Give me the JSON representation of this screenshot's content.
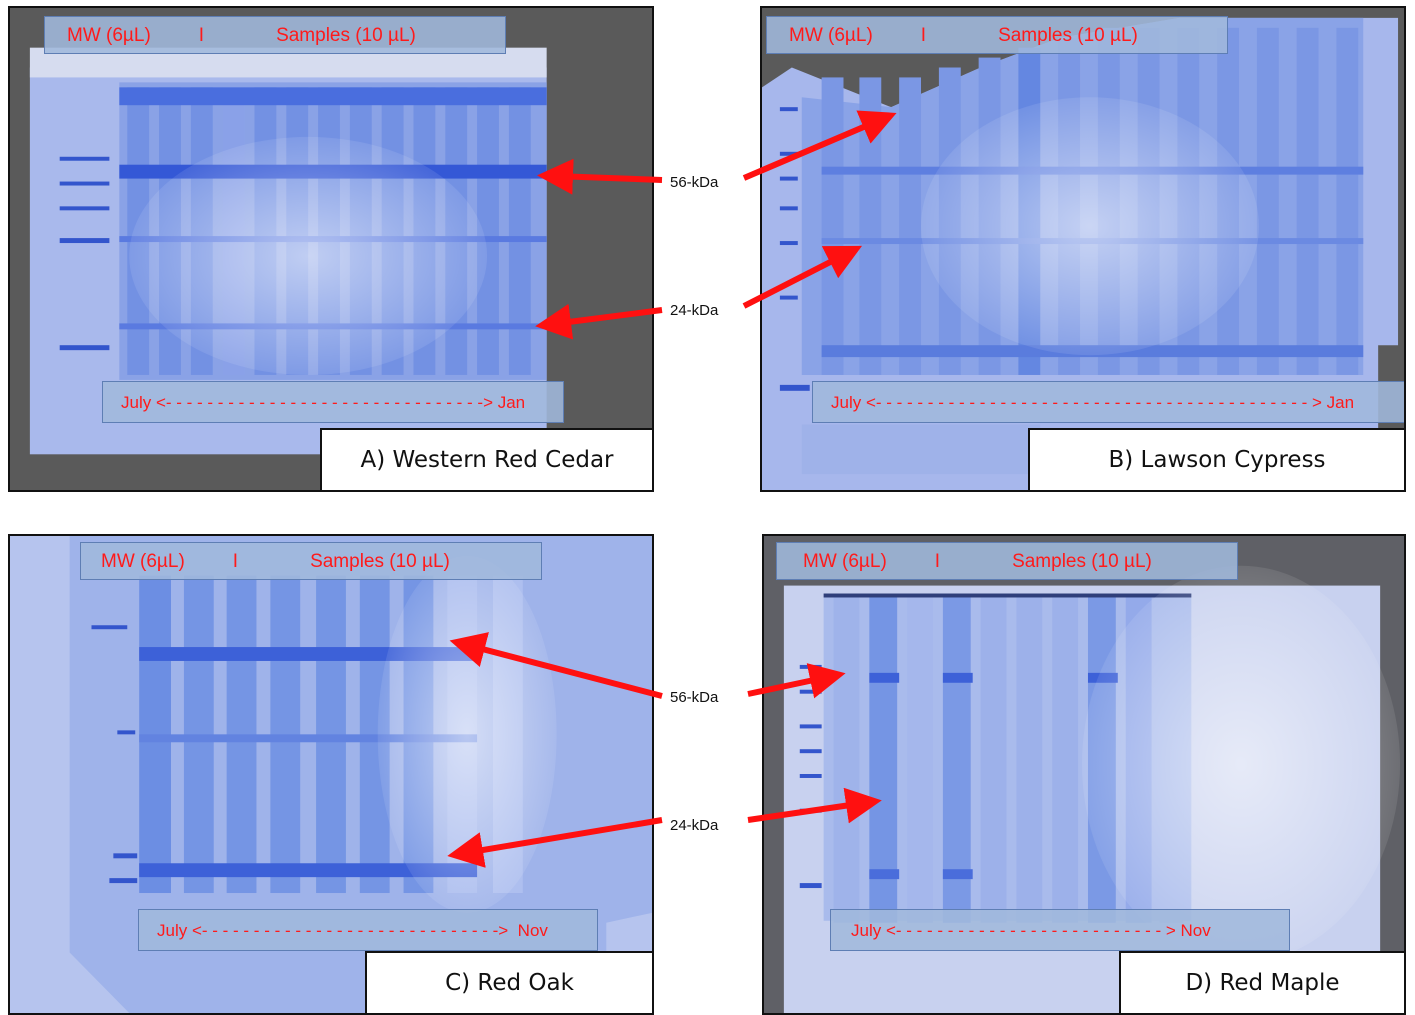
{
  "panels": [
    {
      "id": "a",
      "mw_label": "MW (6µL)",
      "separator": "I",
      "samples_label": "Samples (10 µL)",
      "date_range": "July <- - - - - - - - - - - - - - - - - - - - - - - - - - - - - - -> Jan",
      "title": "A) Western Red Cedar"
    },
    {
      "id": "b",
      "mw_label": "MW (6µL)",
      "separator": "I",
      "samples_label": "Samples (10 µL)",
      "date_range": "July <- - - - - - - - - - - - - - - - - - - - - - - - - - - - - - - - - - - - - - - - - - > Jan",
      "title": "B) Lawson Cypress"
    },
    {
      "id": "c",
      "mw_label": "MW (6µL)",
      "separator": "I",
      "samples_label": "Samples (10 µL)",
      "date_range": "July <- - - - - - - - - - - - - - - - - - - - - - - - - - - - ->  Nov",
      "title": "C) Red Oak"
    },
    {
      "id": "d",
      "mw_label": "MW (6µL)",
      "separator": "I",
      "samples_label": "Samples (10 µL)",
      "date_range": "July <- - - - - - - - - - - - - - - - - - - - - - - - - - > Nov",
      "title": "D) Red Maple"
    }
  ],
  "markers": {
    "top_56": "56-kDa",
    "top_24": "24-kDa",
    "bottom_56": "56-kDa",
    "bottom_24": "24-kDa"
  },
  "colors": {
    "gel_blue": "#6c8fe0",
    "band_blue": "#2f57d8",
    "arrow": "#ff1010",
    "label_text": "#ff1a1a",
    "label_box": "#a0b8dc"
  }
}
